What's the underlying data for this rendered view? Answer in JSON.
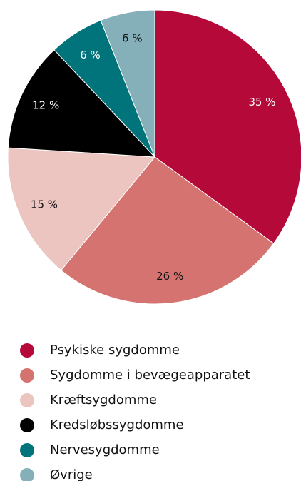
{
  "chart_data": {
    "type": "pie",
    "categories": [
      "Psykiske sygdomme",
      "Sygdomme i bevægeapparatet",
      "Kræftsygdomme",
      "Kredsløbssygdomme",
      "Nervesygdomme",
      "Øvrige"
    ],
    "values": [
      35,
      26,
      15,
      12,
      6,
      6
    ],
    "value_labels": [
      "35 %",
      "26 %",
      "15 %",
      "12 %",
      "6 %",
      "6 %"
    ],
    "colors": [
      "#b5093a",
      "#d4736f",
      "#ecc5c1",
      "#000000",
      "#00747a",
      "#86b0b9"
    ],
    "legend": "bottom"
  }
}
